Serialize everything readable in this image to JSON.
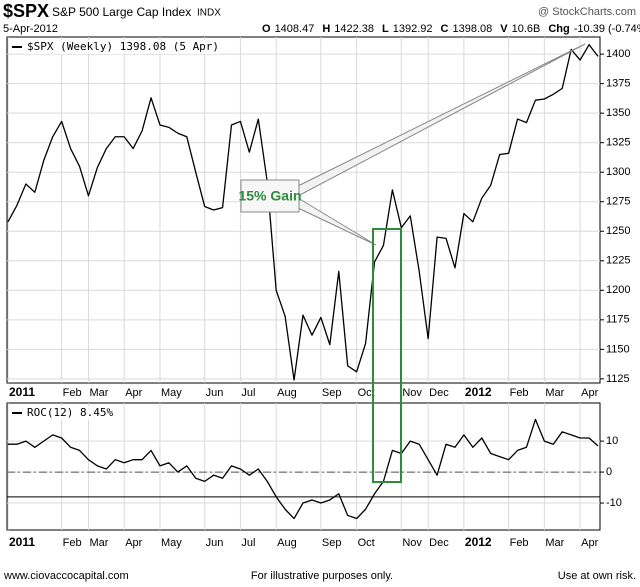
{
  "header": {
    "symbol": "$SPX",
    "name": "S&P 500 Large Cap Index",
    "exchange": "INDX",
    "source": "@ StockCharts.com",
    "date": "5-Apr-2012",
    "quote": [
      {
        "label": "O",
        "value": "1408.47"
      },
      {
        "label": "H",
        "value": "1422.38"
      },
      {
        "label": "L",
        "value": "1392.92"
      },
      {
        "label": "C",
        "value": "1398.08"
      },
      {
        "label": "V",
        "value": "10.6B"
      },
      {
        "label": "Chg",
        "value": "-10.39 (-0.74%)"
      }
    ]
  },
  "chart_data": [
    {
      "type": "line",
      "categories": [
        "2011",
        null,
        null,
        null,
        null,
        null,
        "Feb",
        null,
        null,
        "Mar",
        null,
        null,
        null,
        "Apr",
        null,
        null,
        null,
        "May",
        null,
        null,
        null,
        null,
        "Jun",
        null,
        null,
        null,
        "Jul",
        null,
        null,
        null,
        "Aug",
        null,
        null,
        null,
        null,
        "Sep",
        null,
        null,
        null,
        "Oct",
        null,
        null,
        null,
        null,
        "Nov",
        null,
        null,
        "Dec",
        null,
        null,
        null,
        "2012",
        null,
        null,
        null,
        null,
        "Feb",
        null,
        null,
        null,
        "Mar",
        null,
        null,
        null,
        "Apr",
        null,
        null
      ],
      "series": [
        {
          "name": "$SPX (Weekly) 1398.08 (5 Apr)",
          "color": "#000000",
          "values": [
            1258,
            1272,
            1290,
            1283,
            1310,
            1330,
            1343,
            1320,
            1305,
            1280,
            1304,
            1320,
            1330,
            1330,
            1320,
            1335,
            1363,
            1340,
            1338,
            1333,
            1330,
            1300,
            1271,
            1268,
            1270,
            1340,
            1343,
            1317,
            1345,
            1292,
            1200,
            1178,
            1124,
            1179,
            1162,
            1177,
            1154,
            1216,
            1136,
            1131,
            1155,
            1224,
            1238,
            1285,
            1253,
            1263,
            1216,
            1159,
            1245,
            1244,
            1219,
            1265,
            1258,
            1278,
            1289,
            1315,
            1316,
            1345,
            1342,
            1361,
            1362,
            1366,
            1371,
            1404,
            1395,
            1408,
            1398.08
          ]
        }
      ],
      "ylim": [
        1121.5,
        1414.5
      ],
      "yticks": [
        1125,
        1150,
        1175,
        1200,
        1225,
        1250,
        1275,
        1300,
        1325,
        1350,
        1375,
        1400
      ],
      "grid": true,
      "annotation": "15% Gain"
    },
    {
      "type": "line",
      "categories": [
        "2011",
        null,
        null,
        null,
        null,
        null,
        "Feb",
        null,
        null,
        "Mar",
        null,
        null,
        null,
        "Apr",
        null,
        null,
        null,
        "May",
        null,
        null,
        null,
        null,
        "Jun",
        null,
        null,
        null,
        "Jul",
        null,
        null,
        null,
        "Aug",
        null,
        null,
        null,
        null,
        "Sep",
        null,
        null,
        null,
        "Oct",
        null,
        null,
        null,
        null,
        "Nov",
        null,
        null,
        "Dec",
        null,
        null,
        null,
        "2012",
        null,
        null,
        null,
        null,
        "Feb",
        null,
        null,
        null,
        "Mar",
        null,
        null,
        null,
        "Apr",
        null,
        null
      ],
      "series": [
        {
          "name": "ROC(12) 8.45%",
          "color": "#000000",
          "values": [
            9,
            9,
            10,
            8,
            10,
            12,
            11,
            8,
            7,
            4,
            2,
            1,
            4,
            3,
            4,
            4,
            7,
            2,
            3,
            0,
            2,
            -2,
            -3,
            -1,
            -2,
            2,
            1,
            -1,
            1,
            -3,
            -8,
            -12,
            -15,
            -10,
            -9,
            -10,
            -9,
            -7,
            -14,
            -15,
            -12,
            -7,
            -3,
            7,
            6,
            10,
            9,
            4,
            -1,
            9,
            8,
            12,
            8,
            11,
            6,
            5,
            4,
            7,
            8,
            17,
            10,
            9,
            13,
            12,
            11,
            11,
            8.45
          ]
        }
      ],
      "ylim": [
        -18.7,
        22.3
      ],
      "yticks": [
        -10,
        0,
        10
      ],
      "grid": true,
      "hlines": [
        {
          "value": 0,
          "dash": true
        },
        {
          "value": -8,
          "dash": false
        }
      ]
    }
  ],
  "footer": {
    "left": "www.ciovaccocapital.com",
    "center": "For illustrative purposes only.",
    "right": "Use at own risk."
  }
}
